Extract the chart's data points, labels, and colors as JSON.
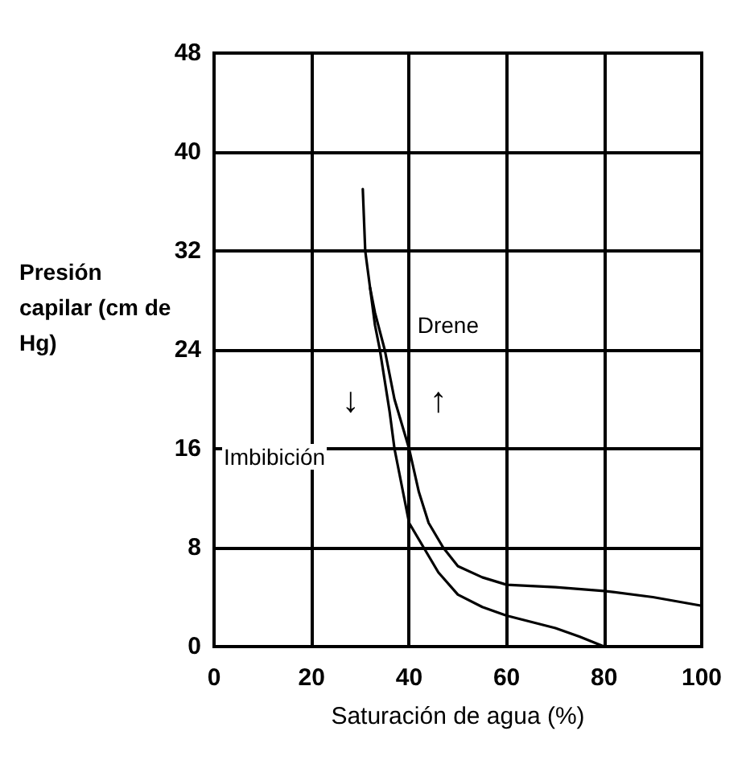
{
  "chart_data": {
    "type": "line",
    "xlabel": "Saturación de agua (%)",
    "ylabel": "Presión capilar (cm de Hg)",
    "xlim": [
      0,
      100
    ],
    "xticks": [
      0,
      20,
      40,
      60,
      80,
      100
    ],
    "ylim": [
      0,
      48
    ],
    "yticks": [
      0,
      8,
      16,
      24,
      32,
      40,
      48
    ],
    "grid": true,
    "marker": "none",
    "line_style": "solid",
    "series": [
      {
        "color": "#000000",
        "x": [
          30.5,
          31,
          32,
          33,
          35,
          37,
          40,
          42,
          44,
          47,
          50,
          55,
          60,
          70,
          80,
          90,
          100
        ],
        "values": [
          37,
          32,
          29,
          27,
          24,
          20,
          16,
          12.5,
          10,
          8,
          6.5,
          5.6,
          5,
          4.8,
          4.5,
          4,
          3.3
        ]
      },
      {
        "color": "#000000",
        "x": [
          32,
          33,
          34,
          36,
          37,
          39,
          40,
          43,
          46,
          50,
          55,
          60,
          65,
          70,
          75,
          80
        ],
        "values": [
          29,
          26,
          24,
          19,
          16,
          12,
          10,
          8,
          6,
          4.2,
          3.2,
          2.5,
          2,
          1.5,
          0.8,
          0
        ]
      }
    ],
    "annotations": [
      {
        "text": "Drene",
        "x": 48,
        "y": 26
      },
      "Imbibición",
      {
        "text": "↓",
        "x": 28,
        "y": 20
      },
      {
        "text": "↑",
        "x": 46,
        "y": 20
      }
    ]
  }
}
